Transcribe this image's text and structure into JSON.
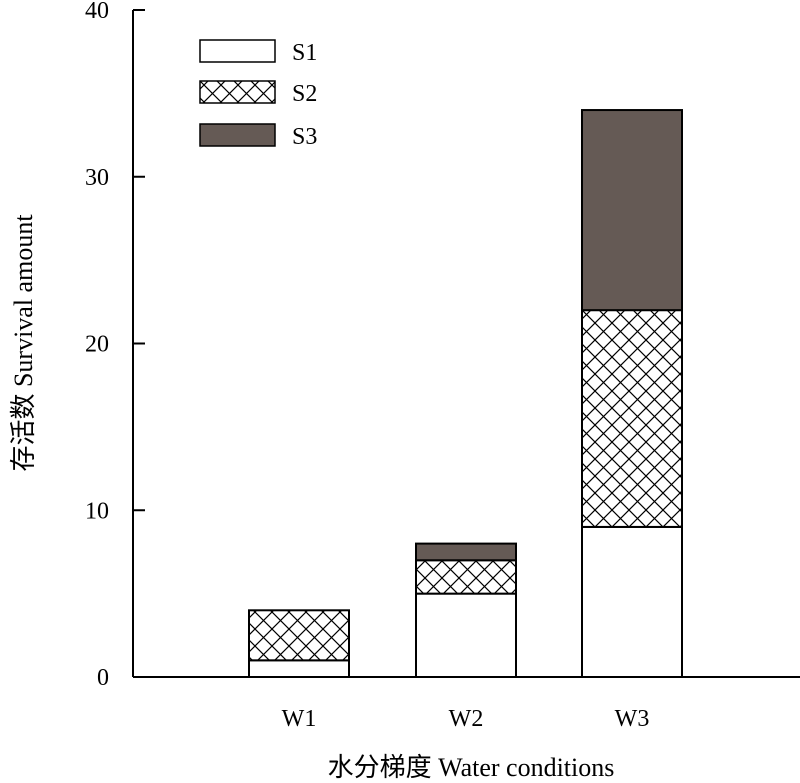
{
  "chart_data": {
    "type": "bar",
    "stacked": true,
    "title": "",
    "xlabel": "水分梯度  Water conditions",
    "ylabel": "存活数  Survival amount",
    "categories": [
      "W1",
      "W2",
      "W3"
    ],
    "ylim": [
      0,
      40
    ],
    "yticks": [
      0,
      10,
      20,
      30,
      40
    ],
    "grid": false,
    "legend_position": "top-left",
    "series": [
      {
        "name": "S1",
        "values": [
          1,
          5,
          9
        ],
        "fill": "#ffffff",
        "pattern": "none"
      },
      {
        "name": "S2",
        "values": [
          3,
          2,
          13
        ],
        "fill": "#ffffff",
        "pattern": "crosshatch"
      },
      {
        "name": "S3",
        "values": [
          0,
          1,
          12
        ],
        "fill": "#655a55",
        "pattern": "none"
      }
    ]
  }
}
